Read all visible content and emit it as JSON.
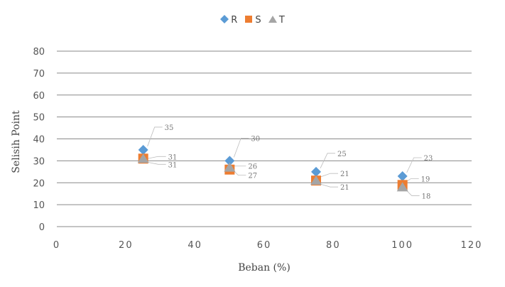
{
  "chart_data": {
    "type": "scatter",
    "xlabel": "Beban (%)",
    "ylabel": "Selisih Point",
    "xlim": [
      0,
      120
    ],
    "ylim": [
      0,
      80
    ],
    "x_ticks": [
      0,
      20,
      40,
      60,
      80,
      100,
      120
    ],
    "y_ticks": [
      0,
      10,
      20,
      30,
      40,
      50,
      60,
      70,
      80
    ],
    "grid": "horizontal",
    "legend_position": "top",
    "series": [
      {
        "name": "R",
        "color": "#5B9BD5",
        "marker": "diamond",
        "points": [
          {
            "x": 25,
            "y": 35
          },
          {
            "x": 50,
            "y": 30
          },
          {
            "x": 75,
            "y": 25
          },
          {
            "x": 100,
            "y": 23
          }
        ],
        "labels": [
          "35",
          "30",
          "25",
          "23"
        ]
      },
      {
        "name": "S",
        "color": "#ED7D31",
        "marker": "square",
        "points": [
          {
            "x": 25,
            "y": 31
          },
          {
            "x": 50,
            "y": 26
          },
          {
            "x": 75,
            "y": 21
          },
          {
            "x": 100,
            "y": 19
          }
        ],
        "labels": [
          "31",
          "26",
          "21",
          "19"
        ]
      },
      {
        "name": "T",
        "color": "#A5A5A5",
        "marker": "triangle",
        "points": [
          {
            "x": 25,
            "y": 31
          },
          {
            "x": 50,
            "y": 27
          },
          {
            "x": 75,
            "y": 21
          },
          {
            "x": 100,
            "y": 18
          }
        ],
        "labels": [
          "31",
          "27",
          "21",
          "18"
        ]
      }
    ]
  }
}
